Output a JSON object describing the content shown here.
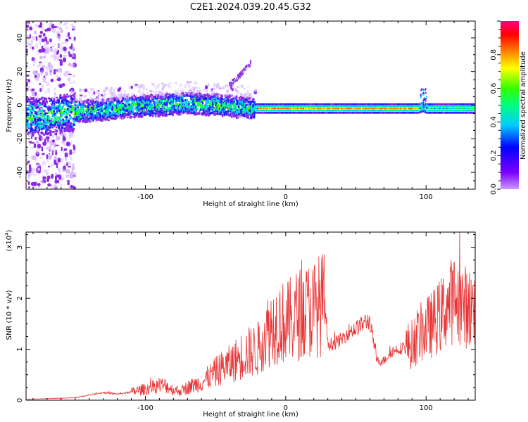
{
  "chart_data": [
    {
      "type": "heatmap",
      "title": "C2E1.2024.039.20.45.G32",
      "xlabel": "Height of straight line (km)",
      "ylabel": "Frequency (Hz)",
      "xlim": [
        -185,
        135
      ],
      "ylim": [
        -50,
        50
      ],
      "xticks": [
        -100,
        0,
        100
      ],
      "yticks": [
        40,
        20,
        0,
        -20,
        -40
      ],
      "colorbar": {
        "label": "Normalized spectral amplitude",
        "range": [
          0,
          1
        ],
        "ticks": [
          "0.0",
          "0.2",
          "0.4",
          "0.6",
          "0.8"
        ]
      },
      "ridge": {
        "x": [
          -185,
          -170,
          -150,
          -130,
          -110,
          -90,
          -70,
          -50,
          -35,
          -25,
          -20,
          0,
          20,
          60,
          95,
          98,
          100,
          110,
          135
        ],
        "y": [
          -6,
          -7,
          -4,
          -3,
          -1,
          0,
          1,
          0,
          -1,
          -2,
          -2,
          -2,
          -2,
          -2,
          -2,
          -1,
          -2,
          -2,
          -2
        ]
      },
      "side_branch": {
        "x": [
          -40,
          -35,
          -30,
          -25
        ],
        "y": [
          12,
          16,
          20,
          25
        ]
      }
    },
    {
      "type": "line",
      "title": "",
      "xlabel": "Height of straight line (km)",
      "ylabel": "SNR (10 * v/v)",
      "y_multiplier": "(x10",
      "y_multiplier_exp": "4",
      "y_multiplier_close": ")",
      "xlim": [
        -185,
        135
      ],
      "ylim": [
        0,
        3.3
      ],
      "xticks": [
        -100,
        0,
        100
      ],
      "yticks": [
        0,
        1,
        2,
        3
      ],
      "color": "#e83434",
      "series": [
        {
          "name": "SNR",
          "x": [
            -185,
            -170,
            -150,
            -140,
            -130,
            -120,
            -110,
            -100,
            -95,
            -90,
            -85,
            -80,
            -75,
            -70,
            -65,
            -60,
            -55,
            -50,
            -45,
            -40,
            -35,
            -30,
            -25,
            -20,
            -15,
            -10,
            -5,
            0,
            5,
            10,
            15,
            20,
            25,
            28,
            30,
            35,
            40,
            45,
            50,
            55,
            58,
            60,
            65,
            70,
            75,
            80,
            85,
            90,
            95,
            100,
            105,
            110,
            115,
            120,
            125,
            130,
            135
          ],
          "y": [
            0.02,
            0.03,
            0.05,
            0.1,
            0.15,
            0.12,
            0.16,
            0.22,
            0.25,
            0.3,
            0.28,
            0.2,
            0.18,
            0.25,
            0.3,
            0.35,
            0.45,
            0.55,
            0.65,
            0.7,
            0.8,
            0.9,
            0.95,
            1.0,
            1.3,
            1.45,
            1.55,
            1.5,
            1.6,
            1.7,
            1.75,
            1.8,
            1.88,
            1.9,
            1.1,
            1.12,
            1.2,
            1.35,
            1.4,
            1.5,
            1.55,
            1.55,
            0.77,
            0.78,
            0.95,
            1.0,
            1.05,
            1.1,
            1.3,
            1.4,
            1.5,
            1.65,
            1.85,
            2.0,
            1.9,
            1.8,
            1.8
          ]
        }
      ]
    }
  ]
}
